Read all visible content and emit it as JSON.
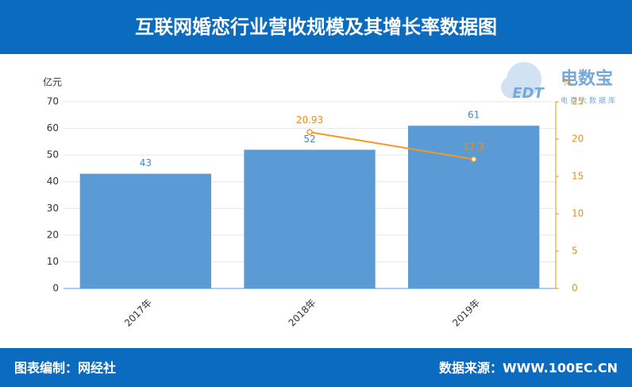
{
  "header": {
    "title": "互联网婚恋行业营收规模及其增长率数据图"
  },
  "logo": {
    "mark": "EDT",
    "name": "电数宝",
    "sub": "电商大数据库"
  },
  "footer": {
    "left": "图表编制：网经社",
    "right": "数据来源：WWW.100EC.CN"
  },
  "chart_data": {
    "type": "bar",
    "ylabel": "亿元",
    "y2label": "%",
    "categories": [
      "2017年",
      "2018年",
      "2019年"
    ],
    "series": [
      {
        "color": "#5b9bd5",
        "label_color": "#4a86c0",
        "values": [
          43,
          52,
          61
        ]
      },
      {
        "type": "line",
        "axis": "y2",
        "color": "#f39a1e",
        "label_color": "#e8900f",
        "values": [
          null,
          20.93,
          17.3
        ]
      }
    ],
    "ylim": [
      0,
      70
    ],
    "yticks": [
      0,
      10,
      20,
      30,
      40,
      50,
      60,
      70
    ],
    "y2lim": [
      0,
      25
    ],
    "y2ticks": [
      0,
      5,
      10,
      15,
      20,
      25
    ],
    "grid": true
  }
}
